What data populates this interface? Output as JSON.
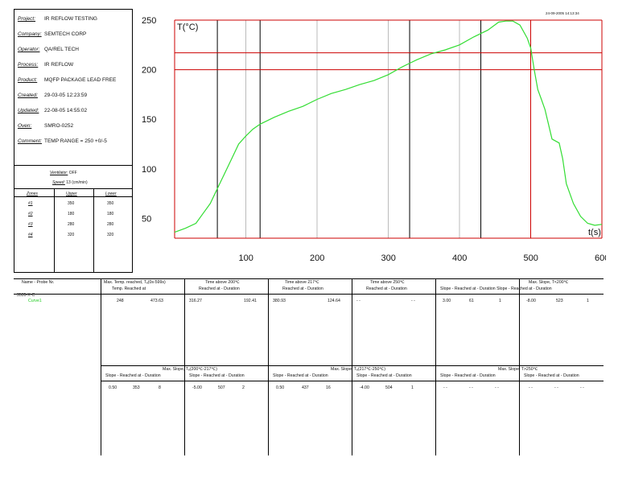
{
  "timestamp": "24-09-2005 14:13:34",
  "info": {
    "rows": [
      {
        "key": "Project:",
        "value": "IR REFLOW TESTING"
      },
      {
        "key": "Company:",
        "value": "SEMTECH CORP"
      },
      {
        "key": "Operator:",
        "value": "QA/REL TECH"
      },
      {
        "key": "Process:",
        "value": "IR REFLOW"
      },
      {
        "key": "Product:",
        "value": "MQFP PACKAGE LEAD FREE"
      },
      {
        "key": "Created:",
        "value": "29-03-05 12:23:59"
      },
      {
        "key": "Updated:",
        "value": "22-08-05 14:55:02"
      },
      {
        "key": "Oven:",
        "value": "SMRO-0252"
      },
      {
        "key": "Comment:",
        "value": "TEMP RANGE = 250 +0/-5"
      }
    ],
    "ventilator_label": "Ventilator:",
    "ventilator_value": "OFF",
    "speed_label": "Speed:",
    "speed_value": "13 (cm/min)",
    "zones_header": [
      "Zones",
      "Upper",
      "Lower"
    ],
    "zones": [
      [
        "#1",
        "350",
        "350"
      ],
      [
        "#2",
        "180",
        "180"
      ],
      [
        "#3",
        "280",
        "280"
      ],
      [
        "#4",
        "320",
        "320"
      ]
    ]
  },
  "chart_data": {
    "type": "line",
    "ylabel": "T(°C)",
    "xlabel": "t(s)",
    "xlim": [
      0,
      600
    ],
    "ylim": [
      30,
      250
    ],
    "xticks": [
      "100",
      "200",
      "300",
      "400",
      "500",
      "600"
    ],
    "yticks": [
      "50",
      "100",
      "150",
      "200",
      "250"
    ],
    "reference_lines_y": [
      217,
      200
    ],
    "series_color": "#33dd33",
    "series": [
      {
        "name": "Curve1",
        "x": [
          0,
          15,
          30,
          40,
          50,
          60,
          70,
          80,
          90,
          100,
          110,
          120,
          140,
          160,
          180,
          200,
          220,
          240,
          260,
          280,
          300,
          320,
          340,
          360,
          380,
          400,
          420,
          440,
          455,
          465,
          475,
          485,
          495,
          500,
          505,
          510,
          515,
          520,
          525,
          530,
          540,
          545,
          550,
          560,
          570,
          580,
          590,
          600
        ],
        "y": [
          36,
          40,
          45,
          55,
          65,
          80,
          95,
          110,
          125,
          133,
          140,
          145,
          152,
          158,
          163,
          170,
          176,
          180,
          185,
          189,
          195,
          203,
          210,
          216,
          220,
          225,
          233,
          240,
          248,
          249,
          249,
          245,
          232,
          222,
          200,
          180,
          170,
          160,
          145,
          130,
          126,
          110,
          85,
          65,
          52,
          45,
          43,
          44
        ]
      }
    ]
  },
  "table": {
    "row1_headers": [
      "Name - Probe Nr.",
      "Max. Temp. reached, Tₑ(0s-599s)",
      "Time above 200℃",
      "Time above 217℃",
      "Time above 250℃",
      "Max. Slope, T<200℃"
    ],
    "row1_subheaders": [
      "",
      "Temp.   Reached at",
      "Reached at - Duration",
      "Reached at - Duration",
      "Reached at - Duration",
      "Slope - Reached at - Duration   Slope - Reached at - Duration"
    ],
    "probe": "3535-X-C",
    "curve_name": "Curve1",
    "row1_values": [
      "248",
      "473.63",
      "316.27",
      "192.41",
      "380.93",
      "124.64",
      "- -",
      "- -",
      "3.00",
      "61",
      "1",
      "-8.00",
      "523",
      "1"
    ],
    "row2_headers": [
      "Max. Slope, Tₑ(200℃-217℃)",
      "Max. Slope, Tₑ(217℃-250℃)",
      "Max. Slope, T>250℃"
    ],
    "row2_sub": "Slope - Reached at - Duration",
    "row2_values": [
      "0.50",
      "353",
      "8",
      "-5.00",
      "507",
      "2",
      "0.50",
      "437",
      "16",
      "-4.00",
      "504",
      "1",
      "- -",
      "- -",
      "- -",
      "- -",
      "- -",
      "- -"
    ]
  }
}
